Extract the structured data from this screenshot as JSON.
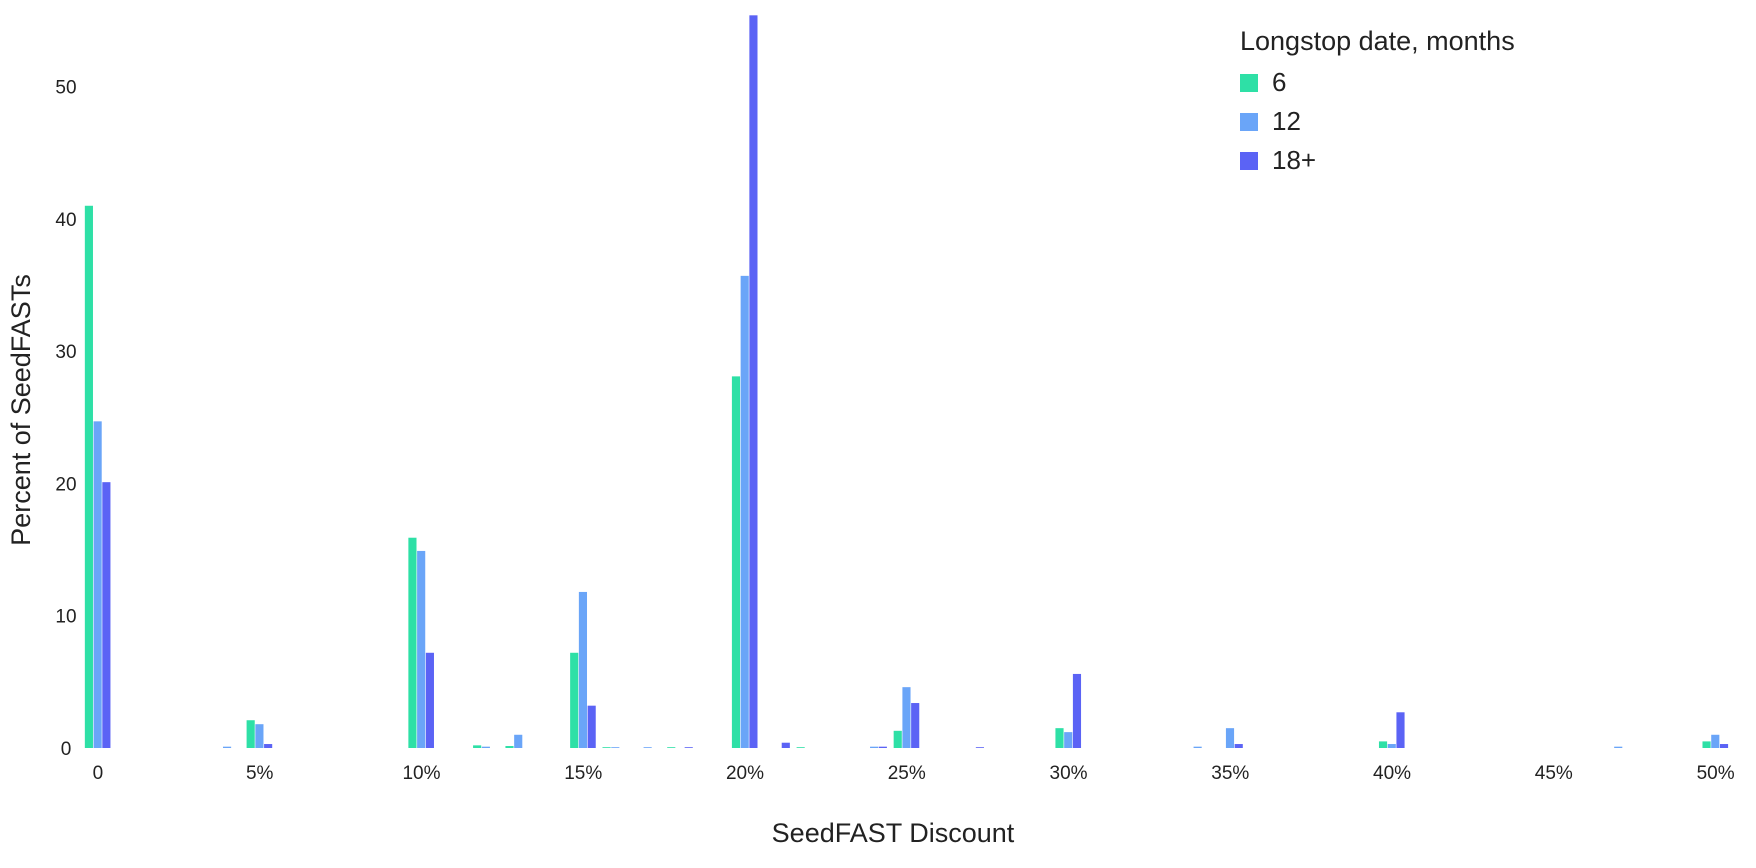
{
  "chart_data": {
    "type": "bar",
    "xlabel": "SeedFAST Discount",
    "ylabel": "Percent of SeedFASTs",
    "x": [
      0,
      1,
      2,
      3,
      4,
      5,
      6,
      7,
      8,
      9,
      10,
      11,
      12,
      13,
      14,
      15,
      16,
      17,
      18,
      19,
      20,
      21,
      22,
      23,
      24,
      25,
      26,
      27,
      28,
      29,
      30,
      31,
      32,
      33,
      34,
      35,
      36,
      37,
      38,
      39,
      40,
      41,
      42,
      43,
      44,
      45,
      46,
      47,
      48,
      49,
      50
    ],
    "x_tick_values": [
      0,
      5,
      10,
      15,
      20,
      25,
      30,
      35,
      40,
      45,
      50
    ],
    "x_tick_labels": [
      "0",
      "5%",
      "10%",
      "15%",
      "20%",
      "25%",
      "30%",
      "35%",
      "40%",
      "45%",
      "50%"
    ],
    "xlim": [
      -0.4,
      50.6
    ],
    "y_ticks": [
      0,
      10,
      20,
      30,
      40,
      50
    ],
    "ylim": [
      0,
      55.5
    ],
    "grid": false,
    "legend": {
      "title": "Longstop date, months",
      "position": "top-right"
    },
    "series": [
      {
        "name": "6",
        "color": "#2ee0a6",
        "values": [
          41,
          0,
          0,
          0,
          0,
          2.1,
          0,
          0,
          0,
          0,
          15.9,
          0,
          0.2,
          0.15,
          0,
          7.2,
          0.05,
          0,
          0.05,
          0,
          28.1,
          0,
          0.05,
          0,
          0,
          1.3,
          0,
          0,
          0,
          0,
          1.5,
          0,
          0,
          0,
          0,
          0,
          0,
          0,
          0,
          0,
          0.5,
          0,
          0,
          0,
          0,
          0,
          0,
          0,
          0,
          0,
          0.5
        ]
      },
      {
        "name": "12",
        "color": "#6aa5f8",
        "values": [
          24.7,
          0,
          0,
          0,
          0.1,
          1.8,
          0,
          0,
          0,
          0,
          14.9,
          0,
          0.1,
          1,
          0,
          11.8,
          0.05,
          0.05,
          0,
          0,
          35.7,
          0,
          0,
          0,
          0.1,
          4.6,
          0,
          0,
          0,
          0,
          1.2,
          0,
          0,
          0,
          0.1,
          1.5,
          0,
          0,
          0,
          0,
          0.3,
          0,
          0,
          0,
          0,
          0,
          0,
          0.1,
          0,
          0,
          1
        ]
      },
      {
        "name": "18+",
        "color": "#5b63f5",
        "values": [
          20.1,
          0,
          0,
          0,
          0,
          0.3,
          0,
          0,
          0,
          0,
          7.2,
          0,
          0,
          0,
          0,
          3.2,
          0,
          0,
          0.05,
          0,
          55.4,
          0.4,
          0,
          0,
          0.1,
          3.4,
          0,
          0.05,
          0,
          0,
          5.6,
          0,
          0,
          0,
          0,
          0.3,
          0,
          0,
          0,
          0,
          2.7,
          0,
          0,
          0,
          0,
          0,
          0,
          0,
          0,
          0,
          0.3
        ]
      }
    ]
  }
}
